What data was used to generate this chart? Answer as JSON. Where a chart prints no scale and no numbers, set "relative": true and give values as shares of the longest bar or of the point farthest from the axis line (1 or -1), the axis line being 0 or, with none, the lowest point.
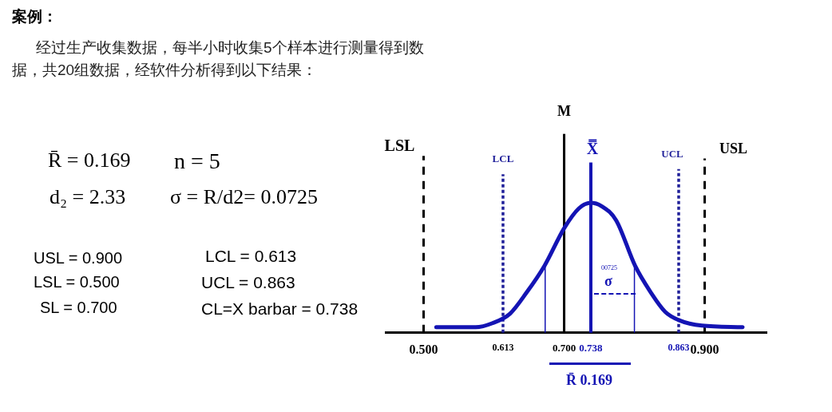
{
  "chart_data": {
    "type": "line",
    "relative": true,
    "title": "案例：",
    "subtitle": "经过生产收集数据，每半小时收集5个样本进行测量得到数据，共20组数据，经软件分析得到以下结果：",
    "xlim": [
      0.446,
      0.988
    ],
    "xticks": [
      {
        "value": 0.5,
        "label": "0.500"
      },
      {
        "value": 0.613,
        "label": "0.613"
      },
      {
        "value": 0.7,
        "label": "0.700"
      },
      {
        "value": 0.738,
        "label": "0.738"
      },
      {
        "value": 0.863,
        "label": "0.863"
      },
      {
        "value": 0.9,
        "label": "0.900"
      }
    ],
    "series": [
      {
        "color": "#1414b4",
        "x": [
          0.518,
          0.574,
          0.598,
          0.623,
          0.647,
          0.672,
          0.7,
          0.721,
          0.738,
          0.753,
          0.774,
          0.801,
          0.823,
          0.844,
          0.863,
          0.896,
          0.954
        ],
        "values": [
          0.043,
          0.043,
          0.074,
          0.147,
          0.313,
          0.515,
          0.804,
          0.957,
          1,
          0.975,
          0.865,
          0.515,
          0.313,
          0.16,
          0.098,
          0.055,
          0.043
        ]
      }
    ],
    "ref_lines": [
      {
        "axis": "x",
        "value": 0.5,
        "label": "LSL",
        "color": "#000000",
        "line_style": "dashed"
      },
      {
        "axis": "x",
        "value": 0.613,
        "label": "LCL",
        "color": "#1f1f99",
        "line_style": "dotted"
      },
      {
        "axis": "x",
        "value": 0.7,
        "label": "M",
        "color": "#000000",
        "line_style": "solid"
      },
      {
        "axis": "x",
        "value": 0.738,
        "label": "X̿",
        "color": "#1414b4",
        "line_style": "solid"
      },
      {
        "axis": "x",
        "value": 0.863,
        "label": "UCL",
        "color": "#1f1f99",
        "line_style": "dotted"
      },
      {
        "axis": "x",
        "value": 0.9,
        "label": "USL",
        "color": "#000000",
        "line_style": "dashed"
      },
      {
        "axis": "x",
        "value": 0.673,
        "label": null,
        "color": "#1414b4",
        "line_style": "solid"
      },
      {
        "axis": "x",
        "value": 0.8,
        "label": null,
        "color": "#1414b4",
        "line_style": "solid"
      }
    ],
    "annotations": [
      "R̄ = 0.169",
      "n = 5",
      "d₂ = 2.33",
      "σ  =  R/d2= 0.0725",
      "USL = 0.900",
      "LSL = 0.500",
      "SL = 0.700",
      "LCL = 0.613",
      "UCL = 0.863",
      "CL=X barbar = 0.738",
      "R̄ 0.169",
      "σ",
      "00725"
    ]
  }
}
